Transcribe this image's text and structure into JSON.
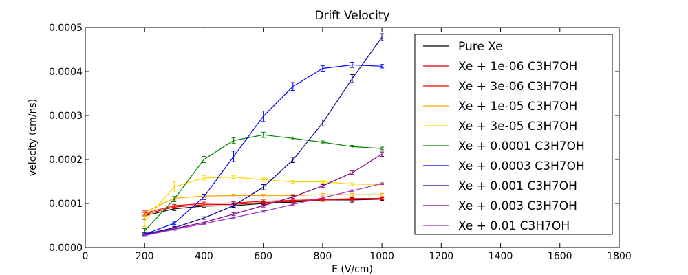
{
  "chart_data": {
    "type": "line",
    "title": "Drift Velocity",
    "xlabel": "E (V/cm)",
    "ylabel": "velocity (cm/ns)",
    "xlim": [
      0,
      1800
    ],
    "ylim": [
      0,
      0.0005
    ],
    "xticks": [
      "0",
      "200",
      "400",
      "600",
      "800",
      "1000",
      "1200",
      "1400",
      "1600",
      "1800"
    ],
    "yticks": [
      "0.0000",
      "0.0001",
      "0.0002",
      "0.0003",
      "0.0004",
      "0.0005"
    ],
    "grid": false,
    "legend_position": "top-right",
    "x": [
      200,
      300,
      400,
      500,
      600,
      700,
      800,
      900,
      1000
    ],
    "series": [
      {
        "name": "Pure Xe",
        "color": "#000000",
        "values": [
          7.2e-05,
          8.8e-05,
          9.4e-05,
          9.5e-05,
          0.0001,
          0.000103,
          0.000108,
          0.000108,
          0.00011
        ],
        "errors": [
          8e-06,
          4e-06,
          3e-06,
          3e-06,
          3e-06,
          3e-06,
          3e-06,
          5e-06,
          3e-06
        ]
      },
      {
        "name": "Xe + 1e-06 C3H7OH",
        "color": "#dd0000",
        "values": [
          7.5e-05,
          9.2e-05,
          9.7e-05,
          9.8e-05,
          0.000102,
          0.000105,
          0.000108,
          0.000109,
          0.000111
        ],
        "errors": [
          5e-06,
          3e-06,
          3e-06,
          3e-06,
          3e-06,
          3e-06,
          3e-06,
          3e-06,
          3e-06
        ]
      },
      {
        "name": "Xe + 3e-06 C3H7OH",
        "color": "#ff0000",
        "values": [
          7.8e-05,
          9.5e-05,
          0.0001,
          0.000101,
          0.000105,
          0.000107,
          0.000109,
          0.000111,
          0.000112
        ],
        "errors": [
          5e-06,
          3e-06,
          3e-06,
          3e-06,
          3e-06,
          3e-06,
          3e-06,
          3e-06,
          3e-06
        ]
      },
      {
        "name": "Xe + 1e-05 C3H7OH",
        "color": "#ffa500",
        "values": [
          8e-05,
          0.000112,
          0.000117,
          0.000118,
          0.000118,
          0.000118,
          0.00012,
          0.00012,
          0.00012
        ],
        "errors": [
          5e-06,
          4e-06,
          3e-06,
          3e-06,
          3e-06,
          3e-06,
          3e-06,
          3e-06,
          3e-06
        ]
      },
      {
        "name": "Xe + 3e-05 C3H7OH",
        "color": "#ffd700",
        "values": [
          6e-05,
          0.000138,
          0.000158,
          0.00016,
          0.000154,
          0.000149,
          0.000149,
          0.000144,
          0.000143
        ],
        "errors": [
          1.2e-05,
          1.2e-05,
          5e-06,
          3e-06,
          4e-06,
          3e-06,
          3e-06,
          3e-06,
          3e-06
        ]
      },
      {
        "name": "Xe + 0.0001 C3H7OH",
        "color": "#008000",
        "values": [
          3.8e-05,
          0.00011,
          0.0002,
          0.000243,
          0.000256,
          0.000248,
          0.000239,
          0.000229,
          0.000225
        ],
        "errors": [
          5e-06,
          6e-06,
          7e-06,
          6e-06,
          6e-06,
          3e-06,
          3e-06,
          3e-06,
          3e-06
        ]
      },
      {
        "name": "Xe + 0.0003 C3H7OH",
        "color": "#0000ff",
        "values": [
          3e-05,
          5.5e-05,
          0.000115,
          0.000207,
          0.000298,
          0.000366,
          0.000407,
          0.000415,
          0.000412
        ],
        "errors": [
          3e-06,
          3e-06,
          6e-06,
          1.2e-05,
          1.2e-05,
          9e-06,
          6e-06,
          6e-06,
          4e-06
        ]
      },
      {
        "name": "Xe + 0.001 C3H7OH",
        "color": "#00008b",
        "values": [
          3e-05,
          4.5e-05,
          6.7e-05,
          9.5e-05,
          0.000137,
          0.000199,
          0.000283,
          0.000384,
          0.000478
        ],
        "errors": [
          3e-06,
          3e-06,
          3e-06,
          4e-06,
          6e-06,
          6e-06,
          7e-06,
          9e-06,
          8e-06
        ]
      },
      {
        "name": "Xe + 0.003 C3H7OH",
        "color": "#800080",
        "values": [
          2.8e-05,
          4.3e-05,
          5.7e-05,
          7.6e-05,
          9.5e-05,
          0.000115,
          0.00014,
          0.00017,
          0.000212
        ],
        "errors": [
          3e-06,
          3e-06,
          3e-06,
          3e-06,
          3e-06,
          3e-06,
          3e-06,
          4e-06,
          5e-06
        ]
      },
      {
        "name": "Xe + 0.01 C3H7OH",
        "color": "#9932cc",
        "values": [
          2.7e-05,
          4.1e-05,
          5.4e-05,
          6.8e-05,
          8.2e-05,
          9.8e-05,
          0.000113,
          0.000129,
          0.000145
        ],
        "errors": [
          2e-06,
          2e-06,
          2e-06,
          2e-06,
          2e-06,
          2e-06,
          2e-06,
          2e-06,
          2e-06
        ]
      }
    ]
  }
}
